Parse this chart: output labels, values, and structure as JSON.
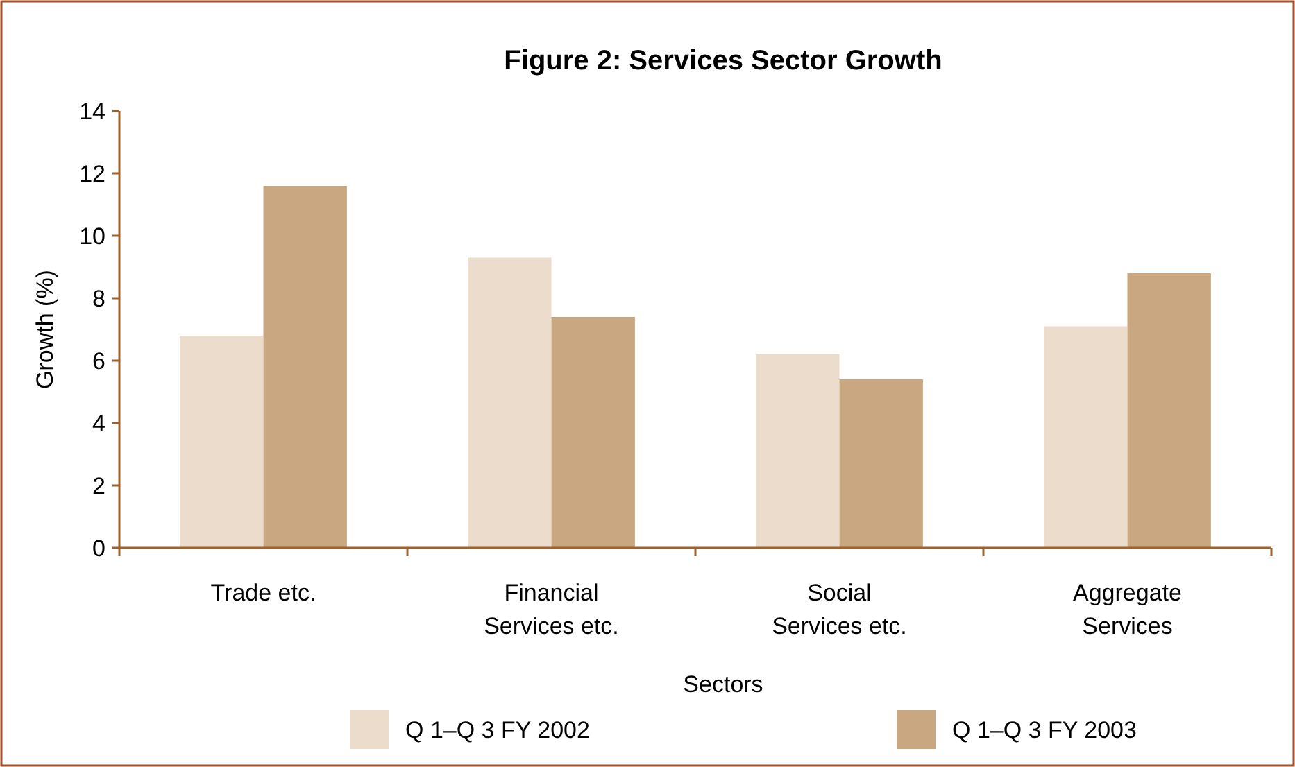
{
  "chart_data": {
    "type": "bar",
    "title": "Figure 2: Services Sector Growth",
    "xlabel": "Sectors",
    "ylabel": "Growth (%)",
    "categories": [
      "Trade etc.",
      "Financial\nServices etc.",
      "Social\nServices etc.",
      "Aggregate\nServices"
    ],
    "series": [
      {
        "name": "Q 1–Q 3 FY 2002",
        "color": "#ecdccb",
        "values": [
          6.8,
          9.3,
          6.2,
          7.1
        ]
      },
      {
        "name": "Q 1–Q 3 FY 2003",
        "color": "#c9a780",
        "values": [
          11.6,
          7.4,
          5.4,
          8.8
        ]
      }
    ],
    "ylim": [
      0,
      14
    ],
    "yticks": [
      0,
      2,
      4,
      6,
      8,
      10,
      12,
      14
    ],
    "grid": false,
    "legend": "bottom"
  }
}
